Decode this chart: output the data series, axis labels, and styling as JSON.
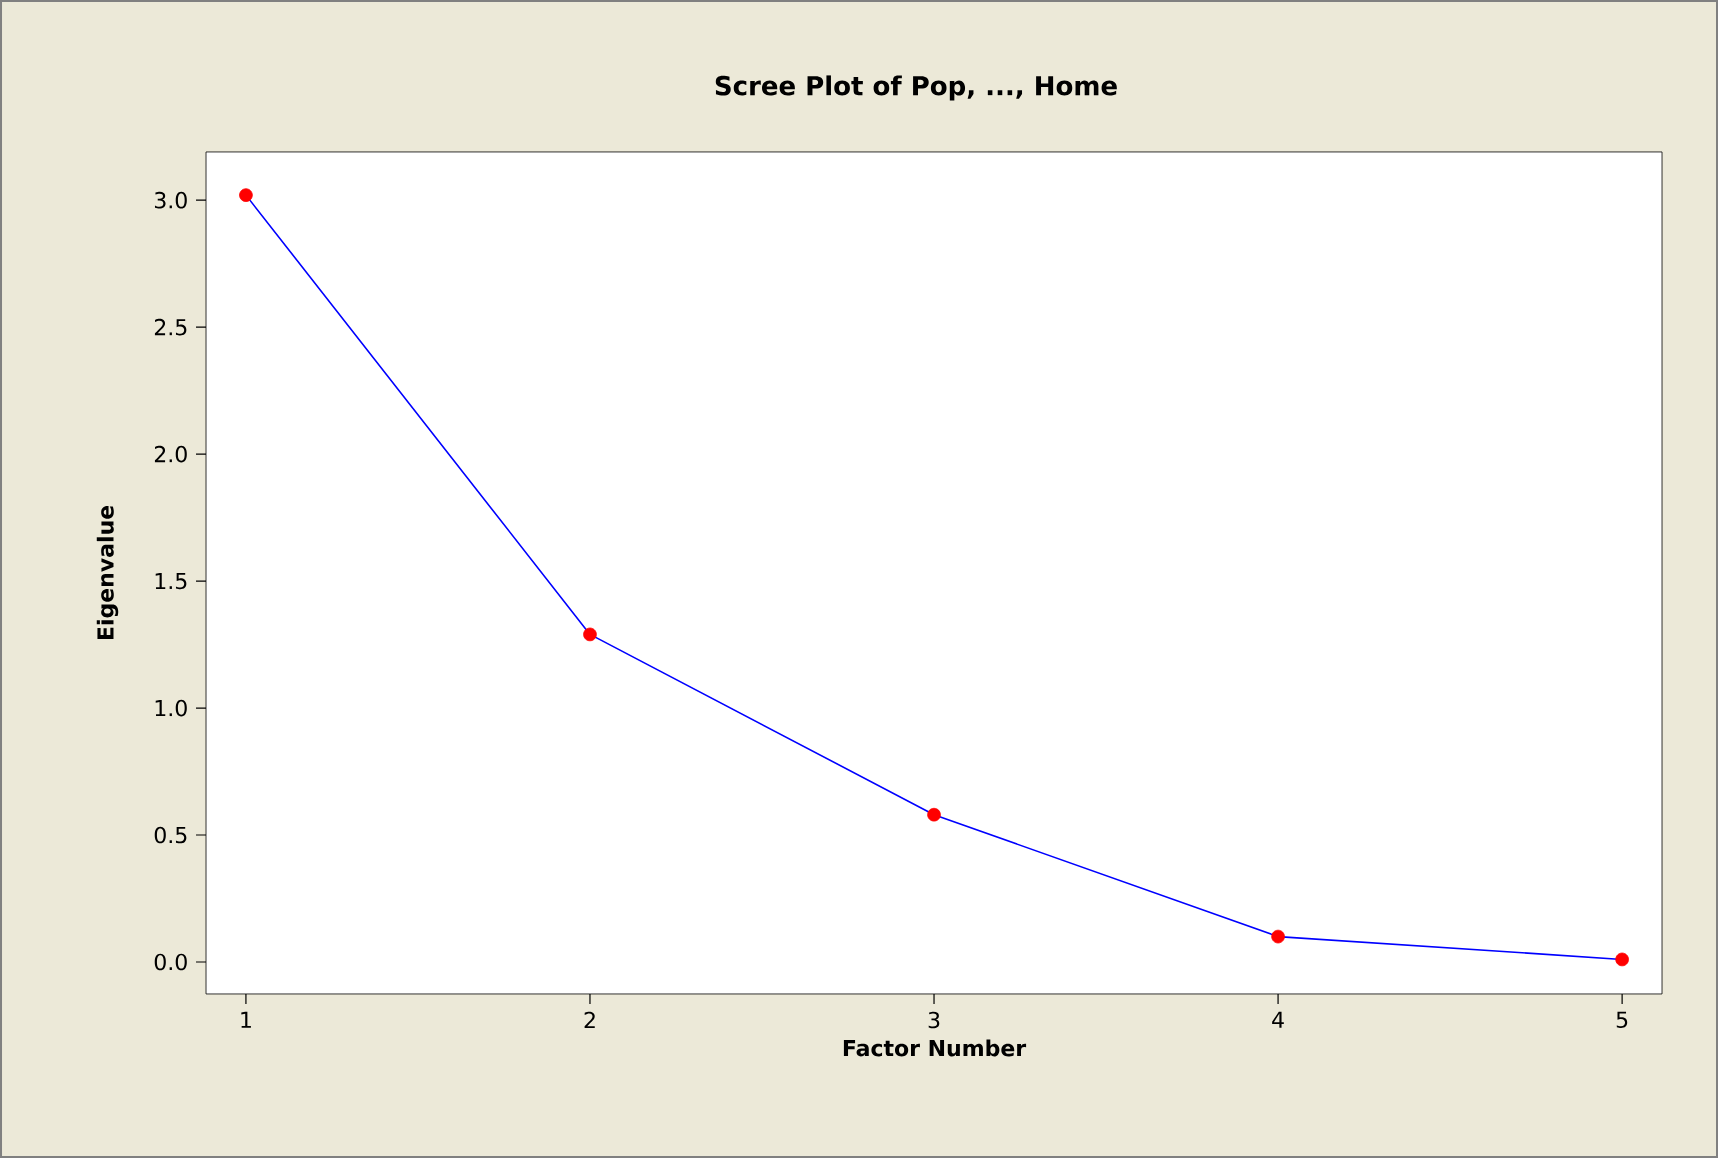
{
  "chart_data": {
    "type": "line",
    "title": "Scree Plot of Pop, ..., Home",
    "xlabel": "Factor Number",
    "ylabel": "Eigenvalue",
    "x": [
      1,
      2,
      3,
      4,
      5
    ],
    "series": [
      {
        "color": "#0000ff",
        "colors": [
          "#ff0000",
          "#ff0000",
          "#ff0000",
          "#ff0000",
          "#ff0000"
        ],
        "values": [
          3.02,
          1.29,
          0.58,
          0.1,
          0.01
        ]
      }
    ],
    "marker": "circle",
    "line_style": "solid",
    "grid": false,
    "xlim": [
      0.884,
      5.116
    ],
    "ylim": [
      -0.126,
      3.19
    ],
    "xticks": [
      1,
      2,
      3,
      4,
      5
    ],
    "yticks": [
      {
        "value": 0,
        "label": "0.0"
      },
      {
        "value": 0.5,
        "label": "0.5"
      },
      {
        "value": 1,
        "label": "1.0"
      },
      {
        "value": 1.5,
        "label": "1.5"
      },
      {
        "value": 2,
        "label": "2.0"
      },
      {
        "value": 2.5,
        "label": "2.5"
      },
      {
        "value": 3,
        "label": "3.0"
      }
    ]
  }
}
